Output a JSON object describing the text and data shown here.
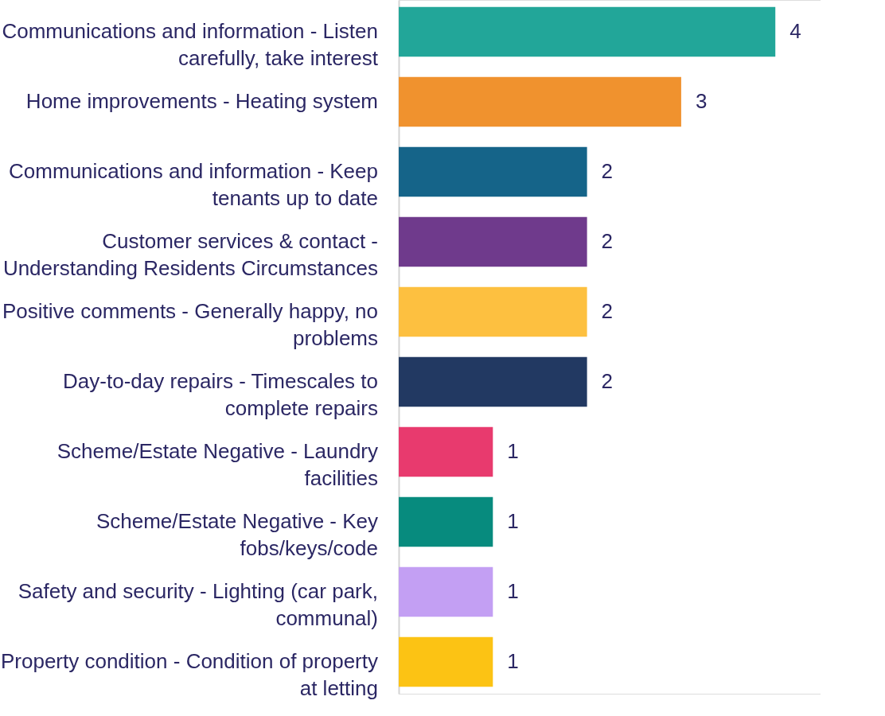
{
  "chart_data": {
    "type": "bar",
    "orientation": "horizontal",
    "data_labels": true,
    "categories": [
      "Communications and information - Listen carefully, take interest",
      "Home improvements - Heating system",
      "Communications and information - Keep tenants up to date",
      "Customer services & contact - Understanding Residents Circumstances",
      "Positive comments - Generally happy, no problems",
      "Day-to-day repairs - Timescales to complete repairs",
      "Scheme/Estate Negative - Laundry facilities",
      "Scheme/Estate Negative - Key fobs/keys/code",
      "Safety and security - Lighting (car park, communal)",
      "Property condition - Condition of property at letting"
    ],
    "values": [
      4,
      3,
      2,
      2,
      2,
      2,
      1,
      1,
      1,
      1
    ],
    "colors": [
      "#22a699",
      "#f0922e",
      "#156489",
      "#6f3a8c",
      "#fdc040",
      "#223962",
      "#e83a6e",
      "#078b7e",
      "#c39ff3",
      "#fcc314"
    ]
  }
}
